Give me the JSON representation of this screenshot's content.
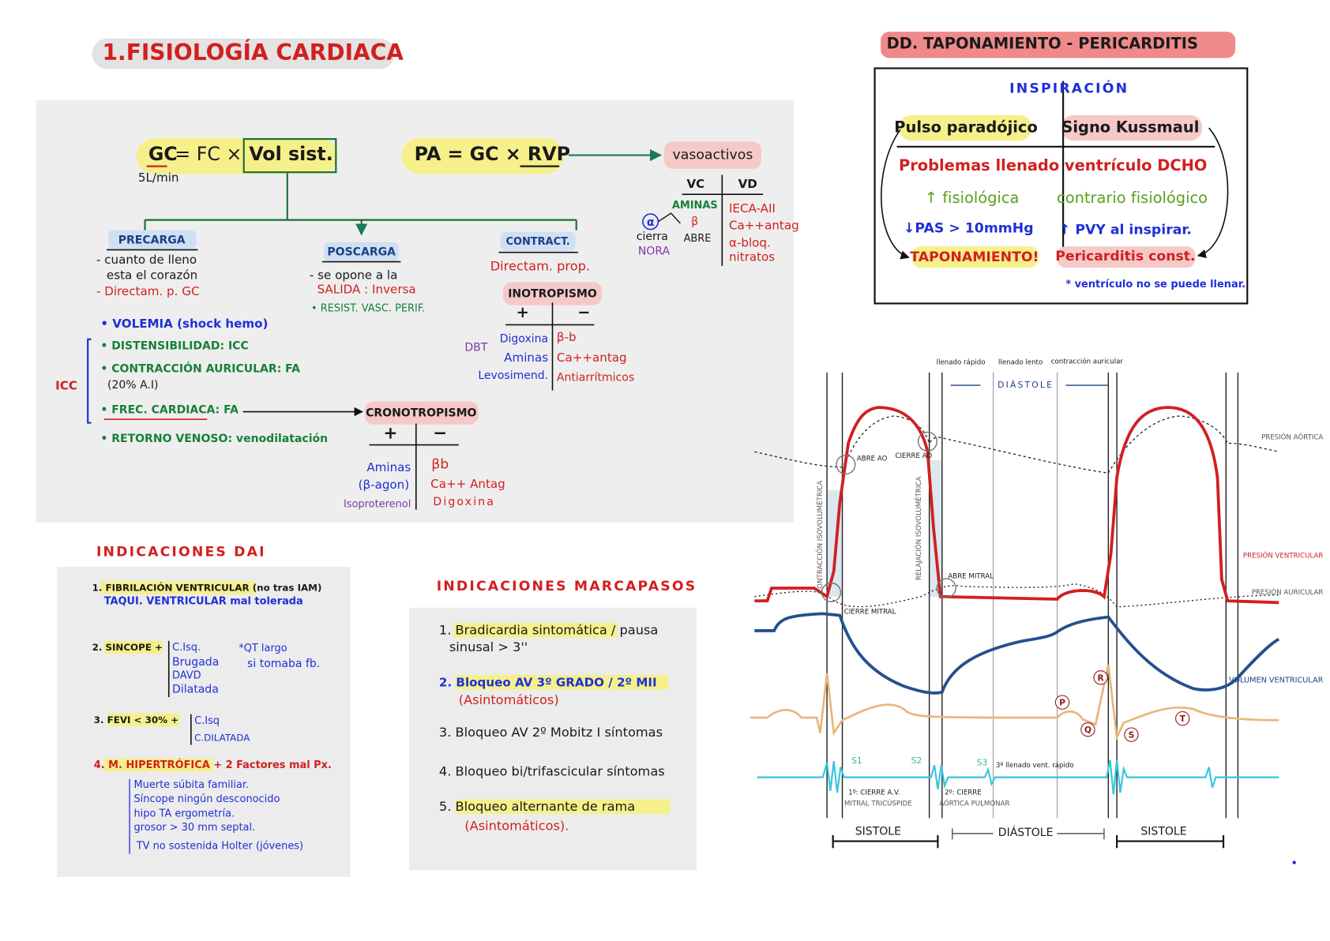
{
  "title": "1.FISIOLOGÍA CARDIACA",
  "right_title": "DD. TAPONAMIENTO - PERICARDITIS",
  "physiology": {
    "gc": "GC",
    "gc_eq": "= FC ×",
    "vol_sist": "Vol sist.",
    "gc_unit": "5L/min",
    "pa": "PA = GC × RVP",
    "vasoactivos": "vasoactivos",
    "vasoactive_table": {
      "headers": [
        "VC",
        "VD"
      ],
      "vc": [
        "AMINAS",
        "α",
        "β",
        "cierra",
        "ABRE",
        "NORA"
      ],
      "vd": [
        "IECA-AII",
        "Ca++antag",
        "α-bloq.",
        "nitratos"
      ]
    },
    "precarga": {
      "label": "PRECARGA",
      "lines": [
        "- cuanto de lleno",
        "esta el corazón",
        "- Directam. p. GC"
      ]
    },
    "poscarga": {
      "label": "POSCARGA",
      "lines": [
        "- se opone a la",
        "SALIDA : Inversa",
        "• RESIST. VASC. PERIF."
      ]
    },
    "contract": {
      "label": "CONTRACT.",
      "lines": [
        "Directam. prop."
      ]
    },
    "inotropismo": {
      "label": "INOTROPISMO",
      "headers": [
        "+",
        "−"
      ],
      "dbt": "DBT",
      "plus": [
        "Digoxina",
        "Aminas",
        "Levosimend."
      ],
      "minus": [
        "β-b",
        "Ca++antag",
        "Antiarrítmicos"
      ]
    },
    "factors": [
      "• VOLEMIA (shock hemo)",
      "• DISTENSIBILIDAD: ICC",
      "• CONTRACCIÓN AURICULAR: FA",
      "(20% A.I)",
      "• FREC. CARDIACA: FA",
      "• RETORNO VENOSO: venodilatación"
    ],
    "icc": "ICC",
    "cronotropismo": {
      "label": "CRONOTROPISMO",
      "headers": [
        "+",
        "−"
      ],
      "plus": [
        "Aminas",
        "(β-agon)",
        "Isoproterenol"
      ],
      "minus": [
        "βb",
        "Ca++ Antag",
        "Digoxina"
      ]
    }
  },
  "taponamiento": {
    "header": "INSPIRACIÓN",
    "columns": [
      "Pulso paradójico",
      "Signo Kussmaul"
    ],
    "shared": "Problemas llenado ventrículo DCHO",
    "left": [
      "↑ fisiológica",
      "↓PAS > 10mmHg",
      "TAPONAMIENTO!"
    ],
    "right": [
      "contrario fisiológico",
      "↑ PVY al inspirar.",
      "Pericarditis const."
    ],
    "note": "* ventrículo no se puede llenar."
  },
  "dai": {
    "title": "INDICACIONES DAI",
    "items": [
      {
        "lines": [
          "1. FIBRILACIÓN VENTRICULAR (no tras IAM)",
          "TAQUI. VENTRICULAR mal tolerada"
        ]
      },
      {
        "label": "2. SINCOPE +",
        "causes": [
          "C.Isq.",
          "Brugada",
          "DAVD",
          "Dilatada"
        ],
        "note": [
          "*QT largo",
          "si tomaba fb."
        ]
      },
      {
        "label": "3. FEVI < 30% +",
        "causes": [
          "C.Isq",
          "C.DILATADA"
        ]
      },
      {
        "label": "4. M. HIPERTRÓFICA + 2 Factores mal Px.",
        "causes": [
          "Muerte súbita familiar.",
          "Síncope ningún desconocido",
          "hipo TA ergometría.",
          "grosor > 30 mm septal.",
          "TV no sostenida Holter (jóvenes)"
        ]
      }
    ]
  },
  "marcapasos": {
    "title": "INDICACIONES MARCAPASOS",
    "items": [
      [
        "1. Bradicardia sintomática / pausa",
        "sinusal > 3''"
      ],
      [
        "2. Bloqueo AV 3º GRADO / 2º MII",
        "(Asintomáticos)"
      ],
      [
        "3. Bloqueo AV 2º Mobitz I síntomas"
      ],
      [
        "4. Bloqueo bi/trifascicular síntomas"
      ],
      [
        "5. Bloqueo alternante de rama",
        "(Asintomáticos)."
      ]
    ]
  },
  "wiggers": {
    "phases": [
      "llenado rápido",
      "llenado lento",
      "contracción auricular"
    ],
    "diastole_top": "DIÁSTOLE",
    "curves": [
      "PRESIÓN AÓRTICA",
      "PRESIÓN VENTRICULAR",
      "PRESIÓN AURICULAR",
      "VOLUMEN VENTRICULAR"
    ],
    "valves": [
      "ABRE AO",
      "CIERRE AO",
      "ABRE MITRAL",
      "CIERRE MITRAL"
    ],
    "isovolumetric": [
      "CONTRACCIÓN ISOVOLUMÉTRICA",
      "RELAJACIÓN ISOVOLUMÉTRICA"
    ],
    "ecg": [
      "P",
      "Q",
      "R",
      "S",
      "T"
    ],
    "sounds": [
      "S1",
      "S2",
      "S3"
    ],
    "s3_note": "3º llenado vent. rápido",
    "s1_note": [
      "1º: CIERRE A.V.",
      "MITRAL TRICÚSPIDE"
    ],
    "s2_note": [
      "2º: CIERRE",
      "AÓRTICA PULMONAR"
    ],
    "cycle": [
      "SISTOLE",
      "DIÁSTOLE",
      "SISTOLE"
    ]
  }
}
